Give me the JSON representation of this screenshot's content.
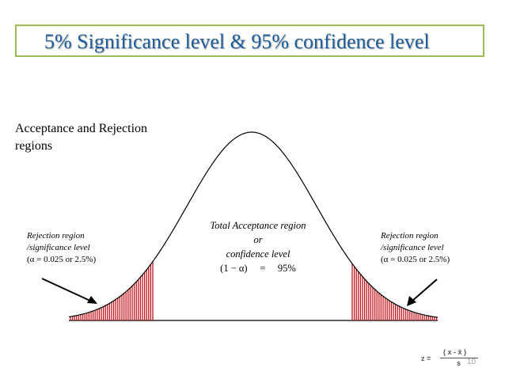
{
  "title": "5% Significance level & 95% confidence level",
  "subtitle_lines": [
    "Acceptance and Rejection",
    "regions"
  ],
  "left_rejection": {
    "lines": [
      "Rejection region",
      "/significance level",
      "(α = 0.025 or 2.5%)"
    ]
  },
  "right_rejection": {
    "lines": [
      "Rejection region",
      "/significance level",
      "(α = 0.025 or 2.5%)"
    ]
  },
  "acceptance": {
    "lines": [
      "Total Acceptance region",
      "or",
      "confidence level",
      "(1 − α)     =     95%"
    ]
  },
  "formula": {
    "lhs": "z =",
    "numerator": "( x - x̄ )",
    "denominator": "s"
  },
  "page_number": "10",
  "colors": {
    "title_text": "#1f5e9e",
    "title_border": "#9bbb59",
    "curve": "#000000",
    "shade": "#c0141b"
  }
}
